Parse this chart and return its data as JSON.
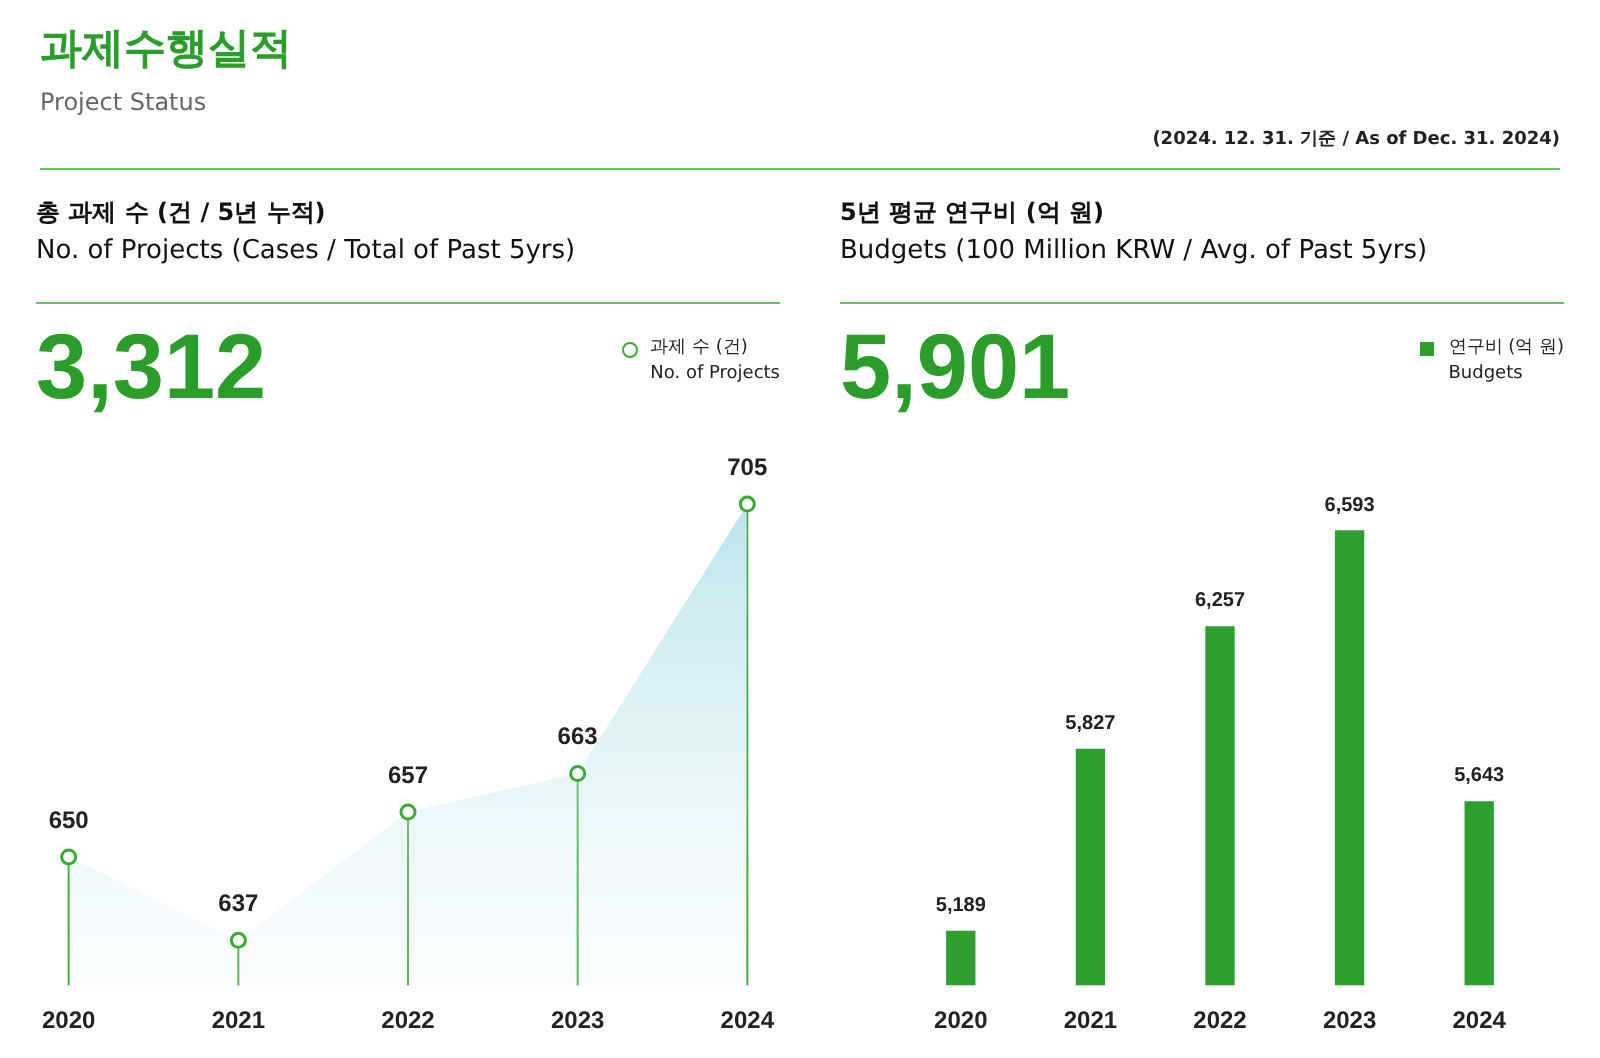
{
  "chart_data": [
    {
      "type": "other",
      "title": "과제수행실적",
      "subtitle": "Project Status",
      "annotations": [
        "(2024. 12. 31. 기준 / As of Dec. 31. 2024)"
      ]
    },
    {
      "type": "area",
      "title": "총 과제 수 (건 / 5년 누적)",
      "subtitle": "No. of Projects (Cases / Total of Past 5yrs)",
      "annotations": [
        "3,312"
      ],
      "categories": [
        "2020",
        "2021",
        "2022",
        "2023",
        "2024"
      ],
      "series": [
        {
          "name": "과제 수 (건)\nNo. of Projects",
          "color": "#3aaa35",
          "values": [
            650,
            637,
            657,
            663,
            705
          ]
        }
      ],
      "tick_labels": "x",
      "grid": false,
      "legend": "top right",
      "marker": "circle",
      "data_labels": true
    },
    {
      "type": "bar",
      "title": "5년 평균 연구비 (억 원)",
      "subtitle": "Budgets (100 Million KRW / Avg. of Past 5yrs)",
      "annotations": [
        "5,901"
      ],
      "categories": [
        "2020",
        "2021",
        "2022",
        "2023",
        "2024"
      ],
      "series": [
        {
          "name": "연구비 (억 원)\nBudgets",
          "color": "#2e9e2e",
          "values": [
            5189,
            5827,
            6257,
            6593,
            5643
          ],
          "value_labels": [
            "5,189",
            "5,827",
            "6,257",
            "6,593",
            "5,643"
          ]
        }
      ],
      "tick_labels": "x",
      "grid": false,
      "legend": "top right"
    }
  ]
}
